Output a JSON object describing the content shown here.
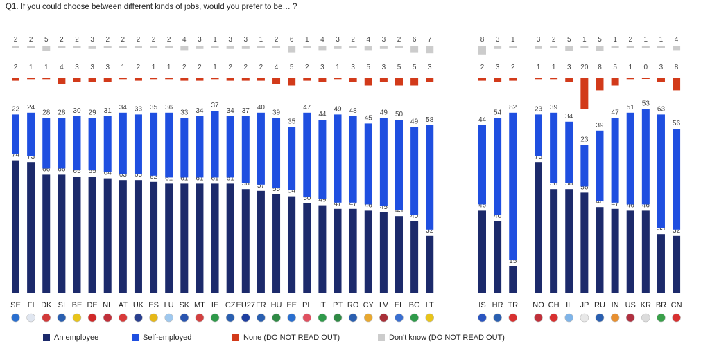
{
  "question": "Q1. If you could choose between different kinds of jobs, would you prefer to be… ?",
  "colors": {
    "employee": "#1c2a6b",
    "self": "#1f4fe0",
    "none": "#d23a1a",
    "dk": "#cccccc",
    "label": "#444444"
  },
  "chart_data": {
    "type": "bar",
    "stacked": true,
    "ylim": [
      0,
      100
    ],
    "groups": [
      [
        "SE",
        "FI",
        "DK",
        "SI",
        "BE",
        "DE",
        "NL",
        "AT",
        "UK",
        "ES",
        "LU",
        "SK",
        "MT",
        "IE",
        "CZ",
        "EU27",
        "FR",
        "HU",
        "EE",
        "PL",
        "IT",
        "PT",
        "RO",
        "CY",
        "LV",
        "EL",
        "BG",
        "LT"
      ],
      [
        "IS",
        "HR",
        "TR"
      ],
      [
        "NO",
        "CH",
        "IL",
        "JP",
        "RU",
        "IN",
        "US",
        "KR",
        "BR",
        "CN"
      ]
    ],
    "categories": [
      "SE",
      "FI",
      "DK",
      "SI",
      "BE",
      "DE",
      "NL",
      "AT",
      "UK",
      "ES",
      "LU",
      "SK",
      "MT",
      "IE",
      "CZ",
      "EU27",
      "FR",
      "HU",
      "EE",
      "PL",
      "IT",
      "PT",
      "RO",
      "CY",
      "LV",
      "EL",
      "BG",
      "LT",
      "IS",
      "HR",
      "TR",
      "NO",
      "CH",
      "IL",
      "JP",
      "RU",
      "IN",
      "US",
      "KR",
      "BR",
      "CN"
    ],
    "category_labels": [
      "SE",
      "FI",
      "DK",
      "SI",
      "BE",
      "DE",
      "NL",
      "AT",
      "UK",
      "ES",
      "LU",
      "SK",
      "MT",
      "IE",
      "CZ",
      "EU27",
      "FR",
      "HU",
      "EE",
      "PL",
      "IT",
      "PT",
      "RO",
      "CY",
      "LV",
      "EL",
      "BG",
      "LT",
      "IS",
      "HR",
      "TR",
      "NO",
      "CH",
      "IL",
      "JP",
      "RU",
      "IN",
      "US",
      "KR",
      "BR",
      "CN"
    ],
    "series": [
      {
        "name": "An employee",
        "values": [
          74,
          73,
          66,
          66,
          65,
          65,
          64,
          63,
          63,
          62,
          61,
          61,
          61,
          61,
          61,
          58,
          57,
          55,
          54,
          50,
          49,
          47,
          47,
          46,
          45,
          43,
          40,
          32,
          46,
          40,
          15,
          73,
          58,
          58,
          56,
          48,
          47,
          46,
          46,
          33,
          32
        ]
      },
      {
        "name": "Self-employed",
        "values": [
          22,
          24,
          28,
          28,
          30,
          29,
          31,
          34,
          33,
          35,
          36,
          33,
          34,
          37,
          34,
          37,
          40,
          39,
          35,
          47,
          44,
          49,
          48,
          45,
          49,
          50,
          49,
          58,
          44,
          54,
          82,
          23,
          39,
          34,
          23,
          39,
          47,
          51,
          53,
          63,
          56
        ]
      },
      {
        "name": "None (DO NOT READ OUT)",
        "values": [
          2,
          1,
          1,
          4,
          3,
          3,
          3,
          1,
          2,
          1,
          1,
          2,
          2,
          1,
          2,
          2,
          2,
          4,
          5,
          2,
          3,
          1,
          3,
          5,
          3,
          5,
          5,
          3,
          2,
          3,
          2,
          1,
          1,
          3,
          20,
          8,
          5,
          1,
          0,
          3,
          8
        ]
      },
      {
        "name": "Don't know (DO NOT READ OUT)",
        "values": [
          2,
          2,
          5,
          2,
          2,
          3,
          2,
          2,
          2,
          2,
          2,
          4,
          3,
          1,
          3,
          3,
          1,
          2,
          6,
          1,
          4,
          3,
          2,
          4,
          3,
          2,
          6,
          7,
          8,
          3,
          1,
          3,
          2,
          5,
          1,
          5,
          1,
          2,
          1,
          1,
          4
        ]
      }
    ]
  }
}
